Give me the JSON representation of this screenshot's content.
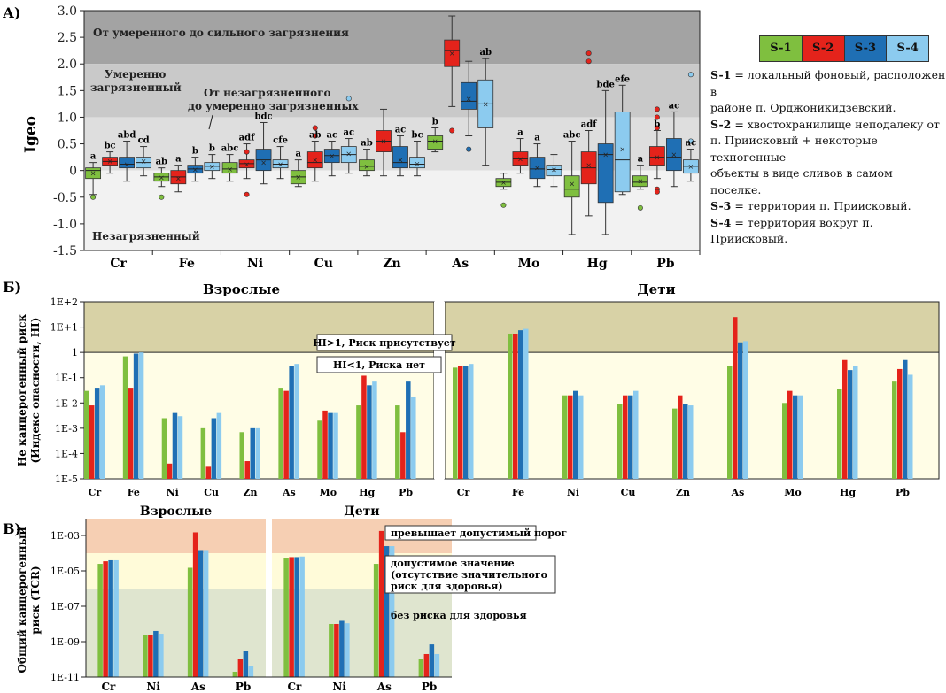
{
  "colors": {
    "S-1": "#7fbf3f",
    "S-2": "#e4231b",
    "S-3": "#1f6fb4",
    "S-4": "#8ccbef"
  },
  "panel_a": {
    "letter": "А)",
    "zone_labels": {
      "top": "От умеренного до сильного загрязнения",
      "moderate_1": "Умеренно",
      "moderate_2": "загрязненный",
      "weak_1": "От незагрязненного",
      "weak_2": "до умеренно загрязненных",
      "clean": "Незагрязненный"
    },
    "ylabel": "Igeo"
  },
  "panel_b": {
    "letter": "Б)",
    "title_adults": "Взрослые",
    "title_children": "Дети",
    "ylabel_1": "Не канцерогенный риск",
    "ylabel_2": "(Индекс опасности, HI)",
    "hi_above": "HI>1, Риск присутствует",
    "hi_below": "HI<1, Риска нет"
  },
  "panel_c": {
    "letter": "В)",
    "title_adults": "Взрослые",
    "title_children": "Дети",
    "ylabel_1": "Общий канцерогенный",
    "ylabel_2": "риск (TCR)",
    "zone_exceeds": "превышает допустимый порог",
    "zone_acceptable_1": "допустимое значение",
    "zone_acceptable_2": "(отсутствие значительного",
    "zone_acceptable_3": "риск для здоровья)",
    "zone_none": "без риска для здоровья"
  },
  "legend": {
    "swatches": [
      "S-1",
      "S-2",
      "S-3",
      "S-4"
    ],
    "lines": [
      [
        "S-1",
        " = локальный фоновый, расположен в"
      ],
      [
        "",
        "районе п. Орджоникидзевский."
      ],
      [
        "S-2",
        " = хвостохранилище неподалеку от"
      ],
      [
        "",
        "п. Приисковый + некоторые техногенные"
      ],
      [
        "",
        "объекты в виде сливов в самом поселке."
      ],
      [
        "S-3",
        " = территория п. Приисковый."
      ],
      [
        "S-4",
        " = территория вокруг п. Приисковый."
      ]
    ]
  },
  "chart_data": [
    {
      "type": "box",
      "title": "",
      "ylabel": "Igeo",
      "ylim": [
        -1.5,
        3.0
      ],
      "yticks": [
        "3.0",
        "2.5",
        "2.0",
        "1.5",
        "1.0",
        "0.5",
        "0",
        "-0.5",
        "-1.0",
        "-1.5"
      ],
      "categories": [
        "Cr",
        "Fe",
        "Ni",
        "Cu",
        "Zn",
        "As",
        "Mo",
        "Hg",
        "Pb"
      ],
      "series_names": [
        "S-1",
        "S-2",
        "S-3",
        "S-4"
      ],
      "boxes": [
        [
          {
            "q1": -0.15,
            "q3": 0.05,
            "med": 0.0,
            "mean": -0.05,
            "lo": -0.45,
            "hi": 0.15
          },
          {
            "q1": 0.1,
            "q3": 0.25,
            "med": 0.17,
            "mean": 0.18,
            "lo": -0.05,
            "hi": 0.35
          },
          {
            "q1": 0.05,
            "q3": 0.25,
            "med": 0.12,
            "mean": 0.12,
            "lo": -0.2,
            "hi": 0.55
          },
          {
            "q1": 0.05,
            "q3": 0.25,
            "med": 0.15,
            "mean": 0.18,
            "lo": -0.1,
            "hi": 0.45
          }
        ],
        [
          {
            "q1": -0.2,
            "q3": -0.05,
            "med": -0.12,
            "mean": -0.13,
            "lo": -0.3,
            "hi": 0.05
          },
          {
            "q1": -0.25,
            "q3": 0.0,
            "med": -0.12,
            "mean": -0.15,
            "lo": -0.4,
            "hi": 0.1
          },
          {
            "q1": -0.05,
            "q3": 0.1,
            "med": 0.03,
            "mean": 0.02,
            "lo": -0.2,
            "hi": 0.25
          },
          {
            "q1": 0.0,
            "q3": 0.15,
            "med": 0.08,
            "mean": 0.08,
            "lo": -0.15,
            "hi": 0.3
          }
        ],
        [
          {
            "q1": -0.05,
            "q3": 0.15,
            "med": 0.03,
            "mean": 0.03,
            "lo": -0.2,
            "hi": 0.3
          },
          {
            "q1": 0.05,
            "q3": 0.2,
            "med": 0.13,
            "mean": 0.12,
            "lo": -0.15,
            "hi": 0.5
          },
          {
            "q1": 0.0,
            "q3": 0.4,
            "med": 0.2,
            "mean": 0.15,
            "lo": -0.25,
            "hi": 0.9
          },
          {
            "q1": 0.05,
            "q3": 0.2,
            "med": 0.12,
            "mean": 0.12,
            "lo": -0.15,
            "hi": 0.45
          }
        ],
        [
          {
            "q1": -0.25,
            "q3": 0.0,
            "med": -0.12,
            "mean": -0.12,
            "lo": -0.3,
            "hi": 0.2
          },
          {
            "q1": 0.05,
            "q3": 0.35,
            "med": 0.15,
            "mean": 0.2,
            "lo": -0.2,
            "hi": 0.55
          },
          {
            "q1": 0.15,
            "q3": 0.4,
            "med": 0.28,
            "mean": 0.28,
            "lo": -0.1,
            "hi": 0.55
          },
          {
            "q1": 0.15,
            "q3": 0.45,
            "med": 0.3,
            "mean": 0.32,
            "lo": -0.05,
            "hi": 0.6
          }
        ],
        [
          {
            "q1": 0.0,
            "q3": 0.2,
            "med": 0.08,
            "mean": 0.08,
            "lo": -0.1,
            "hi": 0.4
          },
          {
            "q1": 0.35,
            "q3": 0.75,
            "med": 0.55,
            "mean": 0.55,
            "lo": -0.1,
            "hi": 1.15
          },
          {
            "q1": 0.05,
            "q3": 0.45,
            "med": 0.15,
            "mean": 0.2,
            "lo": -0.1,
            "hi": 0.65
          },
          {
            "q1": 0.05,
            "q3": 0.25,
            "med": 0.12,
            "mean": 0.13,
            "lo": -0.1,
            "hi": 0.55
          }
        ],
        [
          {
            "q1": 0.4,
            "q3": 0.65,
            "med": 0.55,
            "mean": 0.55,
            "lo": 0.35,
            "hi": 0.8
          },
          {
            "q1": 1.95,
            "q3": 2.45,
            "med": 2.25,
            "mean": 2.2,
            "lo": 1.2,
            "hi": 2.9
          },
          {
            "q1": 1.15,
            "q3": 1.65,
            "med": 1.3,
            "mean": 1.35,
            "lo": 0.65,
            "hi": 2.05
          },
          {
            "q1": 0.8,
            "q3": 1.7,
            "med": 1.25,
            "mean": 1.25,
            "lo": 0.1,
            "hi": 2.1
          }
        ],
        [
          {
            "q1": -0.3,
            "q3": -0.15,
            "med": -0.22,
            "mean": -0.22,
            "lo": -0.35,
            "hi": -0.05
          },
          {
            "q1": 0.1,
            "q3": 0.35,
            "med": 0.22,
            "mean": 0.22,
            "lo": -0.05,
            "hi": 0.6
          },
          {
            "q1": -0.15,
            "q3": 0.25,
            "med": 0.03,
            "mean": 0.05,
            "lo": -0.3,
            "hi": 0.5
          },
          {
            "q1": -0.1,
            "q3": 0.1,
            "med": 0.02,
            "mean": 0.02,
            "lo": -0.3,
            "hi": 0.3
          }
        ],
        [
          {
            "q1": -0.5,
            "q3": -0.1,
            "med": -0.35,
            "mean": -0.25,
            "lo": -1.2,
            "hi": 0.55
          },
          {
            "q1": -0.25,
            "q3": 0.35,
            "med": 0.05,
            "mean": 0.1,
            "lo": -0.85,
            "hi": 0.75
          },
          {
            "q1": -0.6,
            "q3": 0.5,
            "med": 0.3,
            "mean": 0.3,
            "lo": -1.2,
            "hi": 1.5
          },
          {
            "q1": -0.4,
            "q3": 1.1,
            "med": 0.2,
            "mean": 0.4,
            "lo": -0.45,
            "hi": 1.6
          }
        ],
        [
          {
            "q1": -0.3,
            "q3": -0.1,
            "med": -0.22,
            "mean": -0.2,
            "lo": -0.35,
            "hi": 0.1
          },
          {
            "q1": 0.1,
            "q3": 0.45,
            "med": 0.25,
            "mean": 0.25,
            "lo": -0.15,
            "hi": 0.75
          },
          {
            "q1": 0.0,
            "q3": 0.6,
            "med": 0.25,
            "mean": 0.3,
            "lo": -0.3,
            "hi": 1.1
          },
          {
            "q1": -0.05,
            "q3": 0.2,
            "med": 0.08,
            "mean": 0.08,
            "lo": -0.2,
            "hi": 0.4
          }
        ]
      ],
      "outliers": [
        [
          [
            -0.5
          ],
          [],
          [],
          []
        ],
        [
          [
            -0.5
          ],
          [],
          [],
          []
        ],
        [
          [],
          [
            -0.45,
            0.35
          ],
          [],
          []
        ],
        [
          [],
          [
            0.65,
            0.8
          ],
          [],
          [
            1.35
          ]
        ],
        [
          [],
          [],
          [],
          []
        ],
        [
          [],
          [
            0.75
          ],
          [
            0.4
          ],
          []
        ],
        [
          [
            -0.65
          ],
          [],
          [],
          []
        ],
        [
          [],
          [
            2.05,
            2.2
          ],
          [],
          []
        ],
        [
          [
            -0.7
          ],
          [
            0.8,
            1.0,
            1.15,
            -0.35,
            -0.4
          ],
          [],
          [
            1.8,
            0.55
          ]
        ]
      ],
      "group_letters": [
        [
          "a",
          "bc",
          "abd",
          "cd"
        ],
        [
          "ab",
          "a",
          "b",
          "b"
        ],
        [
          "abc",
          "adf",
          "bdc",
          "cfe"
        ],
        [
          "a",
          "ab",
          "ac",
          "ac"
        ],
        [
          "ab",
          "",
          "ac",
          "bc"
        ],
        [
          "b",
          "",
          "",
          "ab"
        ],
        [
          "",
          "a",
          "a",
          ""
        ],
        [
          "abc",
          "adf",
          "bde",
          "efe"
        ],
        [
          "a",
          "b",
          "ac",
          "ac"
        ]
      ]
    },
    {
      "type": "bar",
      "scale": "log",
      "title": "Взрослые / Дети",
      "ylabel": "Не канцерогенный риск (Индекс опасности, HI)",
      "yticks": [
        "1E+2",
        "1E+1",
        "1",
        "1E-1",
        "1E-2",
        "1E-3",
        "1E-4",
        "1E-5"
      ],
      "ylim": [
        1e-05,
        100
      ],
      "categories": [
        "Cr",
        "Fe",
        "Ni",
        "Cu",
        "Zn",
        "As",
        "Mo",
        "Hg",
        "Pb"
      ],
      "series": [
        {
          "name": "Взрослые S-1",
          "values": [
            0.03,
            0.7,
            0.0025,
            0.001,
            0.0007,
            0.04,
            0.002,
            0.008,
            0.008
          ]
        },
        {
          "name": "Взрослые S-2",
          "values": [
            0.008,
            0.04,
            4e-05,
            3e-05,
            5e-05,
            0.03,
            0.005,
            0.12,
            0.0007
          ]
        },
        {
          "name": "Взрослые S-3",
          "values": [
            0.04,
            0.9,
            0.004,
            0.0025,
            0.001,
            0.3,
            0.004,
            0.05,
            0.07
          ]
        },
        {
          "name": "Взрослые S-4",
          "values": [
            0.05,
            1.0,
            0.003,
            0.004,
            0.001,
            0.35,
            0.004,
            0.07,
            0.018
          ]
        },
        {
          "name": "Дети S-1",
          "values": [
            0.25,
            5.5,
            0.02,
            0.009,
            0.006,
            0.3,
            0.01,
            0.035,
            0.07
          ]
        },
        {
          "name": "Дети S-2",
          "values": [
            0.3,
            5.5,
            0.02,
            0.02,
            0.02,
            25,
            0.03,
            0.5,
            0.22
          ]
        },
        {
          "name": "Дети S-3",
          "values": [
            0.3,
            7.5,
            0.03,
            0.02,
            0.009,
            2.5,
            0.02,
            0.2,
            0.5
          ]
        },
        {
          "name": "Дети S-4",
          "values": [
            0.35,
            8.5,
            0.02,
            0.03,
            0.008,
            2.8,
            0.02,
            0.3,
            0.13
          ]
        }
      ]
    },
    {
      "type": "bar",
      "scale": "log",
      "title": "Взрослые / Дети",
      "ylabel": "Общий канцерогенный риск (TCR)",
      "yticks": [
        "1E-03",
        "1E-05",
        "1E-07",
        "1E-09",
        "1E-11"
      ],
      "ylim": [
        1e-11,
        0.01
      ],
      "categories": [
        "Cr",
        "Ni",
        "As",
        "Pb"
      ],
      "series": [
        {
          "name": "Взрослые S-1",
          "values": [
            2.5e-05,
            2.5e-09,
            1.5e-05,
            2e-11
          ]
        },
        {
          "name": "Взрослые S-2",
          "values": [
            3.5e-05,
            2.5e-09,
            0.0015,
            1e-10
          ]
        },
        {
          "name": "Взрослые S-3",
          "values": [
            4e-05,
            4e-09,
            0.00015,
            3e-10
          ]
        },
        {
          "name": "Взрослые S-4",
          "values": [
            4e-05,
            2.8e-09,
            0.00015,
            4e-11
          ]
        },
        {
          "name": "Дети S-1",
          "values": [
            5e-05,
            1e-08,
            2.5e-05,
            1e-10
          ]
        },
        {
          "name": "Дети S-2",
          "values": [
            6e-05,
            1e-08,
            0.0018,
            2e-10
          ]
        },
        {
          "name": "Дети S-3",
          "values": [
            6e-05,
            1.5e-08,
            0.00025,
            7e-10
          ]
        },
        {
          "name": "Дети S-4",
          "values": [
            6.5e-05,
            1.1e-08,
            0.00025,
            2e-10
          ]
        }
      ]
    }
  ]
}
